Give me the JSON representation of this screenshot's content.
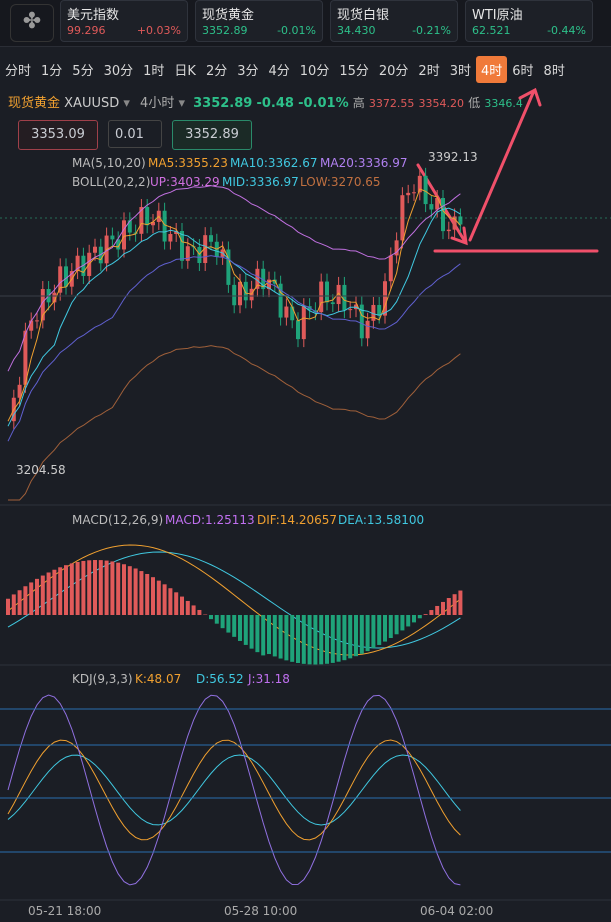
{
  "tickers": [
    {
      "name": "美元指数",
      "price": "99.296",
      "change": "+0.03%"
    },
    {
      "name": "现货黄金",
      "price": "3352.89",
      "change": "-0.01%"
    },
    {
      "name": "现货白银",
      "price": "34.430",
      "change": "-0.21%"
    },
    {
      "name": "WTI原油",
      "price": "62.521",
      "change": "-0.44%"
    }
  ],
  "periods": [
    "分时",
    "1分",
    "5分",
    "30分",
    "1时",
    "日K",
    "2分",
    "3分",
    "4分",
    "10分",
    "15分",
    "20分",
    "2时",
    "3时",
    "4时",
    "6时",
    "8时"
  ],
  "active_period": "4时",
  "header": {
    "symbol": "现货黄金",
    "code": "XAUUSD",
    "interval": "4小时",
    "price": "3352.89",
    "change": "-0.48",
    "percent": "-0.01%",
    "high_label": "高",
    "high": "3372.55",
    "open": "3354.20",
    "low_label": "低",
    "low": "3346.4"
  },
  "order": {
    "sell": "3353.09",
    "lot": "0.01",
    "buy": "3352.89"
  },
  "ma": {
    "name": "MA(5,10,20)",
    "ma5": "MA5:3355.23",
    "ma10": "MA10:3362.67",
    "ma20": "MA20:3336.97"
  },
  "boll": {
    "name": "BOLL(20,2,2)",
    "up": "UP:3403.29",
    "mid": "MID:3336.97",
    "low": "LOW:3270.65"
  },
  "annotations": {
    "max": "3392.13",
    "min": "3204.58"
  },
  "macd": {
    "name": "MACD(12,26,9)",
    "macd": "MACD:1.25113",
    "dif": "DIF:14.20657",
    "dea": "DEA:13.58100"
  },
  "kdj": {
    "name": "KDJ(9,3,3)",
    "k": "K:48.07",
    "d": "D:56.52",
    "j": "J:31.18"
  },
  "x_labels": [
    "05-21 18:00",
    "05-28 10:00",
    "06-04 02:00"
  ]
}
